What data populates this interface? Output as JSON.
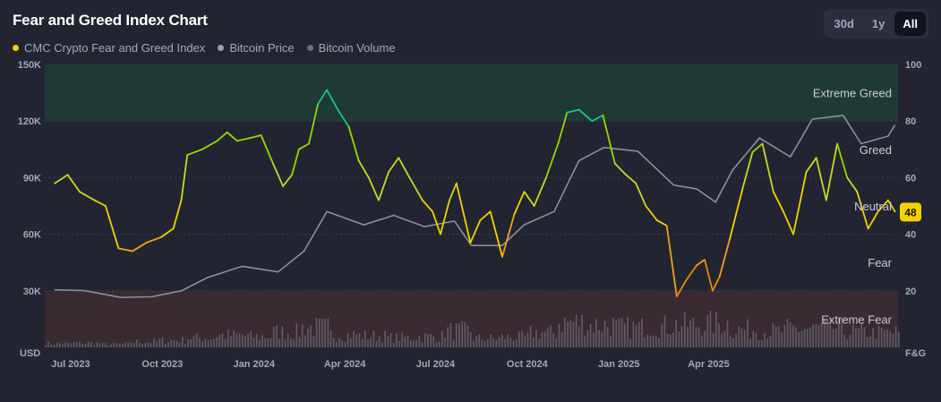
{
  "header": {
    "title": "Fear and Greed Index Chart",
    "ranges": [
      "30d",
      "1y",
      "All"
    ],
    "active_range": "All"
  },
  "legend": [
    {
      "label": "CMC Crypto Fear and Greed Index",
      "color": "#f5d100"
    },
    {
      "label": "Bitcoin Price",
      "color": "#9ea3b3"
    },
    {
      "label": "Bitcoin Volume",
      "color": "#6b6f7d"
    }
  ],
  "chart_data": {
    "type": "line",
    "left_axis": {
      "unit_label": "USD",
      "ticks": [
        "150K",
        "120K",
        "90K",
        "60K",
        "30K"
      ],
      "tick_values": [
        150000,
        120000,
        90000,
        60000,
        30000
      ],
      "range": [
        0,
        150000
      ]
    },
    "right_axis": {
      "unit_label": "F&G",
      "ticks": [
        "100",
        "80",
        "60",
        "40",
        "20"
      ],
      "tick_values": [
        100,
        80,
        60,
        40,
        20
      ],
      "range": [
        0,
        100
      ]
    },
    "x_ticks": [
      "Jul 2023",
      "Oct 2023",
      "Jan 2024",
      "Apr 2024",
      "Jul 2024",
      "Oct 2024",
      "Jan 2025",
      "Apr 2025"
    ],
    "zones": [
      {
        "label": "Extreme Greed",
        "from": 80,
        "to": 100,
        "color": "#1f3a36"
      },
      {
        "label": "Greed",
        "from": 60,
        "to": 80
      },
      {
        "label": "Neutral",
        "from": 40,
        "to": 60
      },
      {
        "label": "Fear",
        "from": 20,
        "to": 40
      },
      {
        "label": "Extreme Fear",
        "from": 0,
        "to": 20,
        "color": "#3a2a32"
      }
    ],
    "current_value": "48",
    "current_value_color": "#f5d100",
    "grid": true,
    "series": [
      {
        "name": "CMC Crypto Fear and Greed Index",
        "color_scale": "fear-greed",
        "points": [
          [
            "2023-06-15",
            58
          ],
          [
            "2023-06-28",
            61
          ],
          [
            "2023-07-10",
            55
          ],
          [
            "2023-07-25",
            52
          ],
          [
            "2023-08-05",
            50
          ],
          [
            "2023-08-18",
            35
          ],
          [
            "2023-09-01",
            34
          ],
          [
            "2023-09-15",
            37
          ],
          [
            "2023-09-30",
            39
          ],
          [
            "2023-10-12",
            42
          ],
          [
            "2023-10-20",
            52
          ],
          [
            "2023-10-26",
            68
          ],
          [
            "2023-11-10",
            70
          ],
          [
            "2023-11-25",
            73
          ],
          [
            "2023-12-05",
            76
          ],
          [
            "2023-12-15",
            73
          ],
          [
            "2023-12-28",
            74
          ],
          [
            "2024-01-08",
            75
          ],
          [
            "2024-01-20",
            65
          ],
          [
            "2024-01-30",
            57
          ],
          [
            "2024-02-08",
            61
          ],
          [
            "2024-02-15",
            70
          ],
          [
            "2024-02-25",
            72
          ],
          [
            "2024-03-05",
            86
          ],
          [
            "2024-03-14",
            91
          ],
          [
            "2024-03-25",
            84
          ],
          [
            "2024-04-05",
            78
          ],
          [
            "2024-04-15",
            66
          ],
          [
            "2024-04-25",
            60
          ],
          [
            "2024-05-05",
            52
          ],
          [
            "2024-05-15",
            62
          ],
          [
            "2024-05-25",
            67
          ],
          [
            "2024-06-05",
            60
          ],
          [
            "2024-06-18",
            52
          ],
          [
            "2024-06-28",
            48
          ],
          [
            "2024-07-06",
            40
          ],
          [
            "2024-07-15",
            52
          ],
          [
            "2024-07-22",
            58
          ],
          [
            "2024-08-05",
            37
          ],
          [
            "2024-08-15",
            45
          ],
          [
            "2024-08-25",
            48
          ],
          [
            "2024-09-06",
            32
          ],
          [
            "2024-09-18",
            47
          ],
          [
            "2024-09-28",
            55
          ],
          [
            "2024-10-08",
            50
          ],
          [
            "2024-10-20",
            60
          ],
          [
            "2024-11-01",
            72
          ],
          [
            "2024-11-10",
            83
          ],
          [
            "2024-11-22",
            84
          ],
          [
            "2024-12-05",
            80
          ],
          [
            "2024-12-16",
            82
          ],
          [
            "2024-12-28",
            65
          ],
          [
            "2025-01-08",
            61
          ],
          [
            "2025-01-18",
            58
          ],
          [
            "2025-01-28",
            50
          ],
          [
            "2025-02-08",
            45
          ],
          [
            "2025-02-18",
            43
          ],
          [
            "2025-02-28",
            18
          ],
          [
            "2025-03-10",
            24
          ],
          [
            "2025-03-20",
            29
          ],
          [
            "2025-03-28",
            31
          ],
          [
            "2025-04-05",
            20
          ],
          [
            "2025-04-12",
            25
          ],
          [
            "2025-04-22",
            38
          ],
          [
            "2025-05-05",
            56
          ],
          [
            "2025-05-15",
            69
          ],
          [
            "2025-05-25",
            72
          ],
          [
            "2025-06-05",
            55
          ],
          [
            "2025-06-15",
            48
          ],
          [
            "2025-06-25",
            40
          ],
          [
            "2025-07-08",
            62
          ],
          [
            "2025-07-18",
            67
          ],
          [
            "2025-07-28",
            52
          ],
          [
            "2025-08-08",
            72
          ],
          [
            "2025-08-18",
            60
          ],
          [
            "2025-08-28",
            55
          ],
          [
            "2025-09-08",
            42
          ],
          [
            "2025-09-18",
            48
          ],
          [
            "2025-09-28",
            52
          ],
          [
            "2025-10-05",
            48
          ]
        ]
      },
      {
        "name": "Bitcoin Price",
        "color": "#8a8f9f",
        "points": [
          [
            "2023-06-15",
            30500
          ],
          [
            "2023-07-15",
            30100
          ],
          [
            "2023-08-20",
            26500
          ],
          [
            "2023-09-20",
            26800
          ],
          [
            "2023-10-20",
            30000
          ],
          [
            "2023-11-15",
            37000
          ],
          [
            "2023-12-20",
            43000
          ],
          [
            "2024-01-25",
            40000
          ],
          [
            "2024-02-20",
            51000
          ],
          [
            "2024-03-14",
            72000
          ],
          [
            "2024-04-20",
            65000
          ],
          [
            "2024-05-20",
            70000
          ],
          [
            "2024-06-20",
            64000
          ],
          [
            "2024-07-20",
            67000
          ],
          [
            "2024-08-06",
            54000
          ],
          [
            "2024-09-06",
            54000
          ],
          [
            "2024-09-28",
            65000
          ],
          [
            "2024-10-28",
            72000
          ],
          [
            "2024-11-22",
            99000
          ],
          [
            "2024-12-17",
            106000
          ],
          [
            "2025-01-20",
            104000
          ],
          [
            "2025-02-25",
            86000
          ],
          [
            "2025-03-20",
            84000
          ],
          [
            "2025-04-08",
            77000
          ],
          [
            "2025-04-25",
            94000
          ],
          [
            "2025-05-22",
            111000
          ],
          [
            "2025-06-22",
            101000
          ],
          [
            "2025-07-14",
            121000
          ],
          [
            "2025-08-14",
            123000
          ],
          [
            "2025-09-01",
            108000
          ],
          [
            "2025-09-28",
            112000
          ],
          [
            "2025-10-05",
            118000
          ]
        ]
      },
      {
        "name": "Bitcoin Volume",
        "color": "#6b6f7d",
        "note_only": false,
        "relative_levels": [
          0.12,
          0.14,
          0.1,
          0.18,
          0.22,
          0.3,
          0.38,
          0.34,
          0.48,
          0.62,
          0.4,
          0.36,
          0.3,
          0.34,
          0.52,
          0.28,
          0.32,
          0.46,
          0.78,
          0.7,
          0.62,
          0.66,
          0.7,
          0.74,
          0.56,
          0.5,
          0.58,
          0.6,
          0.48,
          0.46
        ]
      }
    ]
  }
}
